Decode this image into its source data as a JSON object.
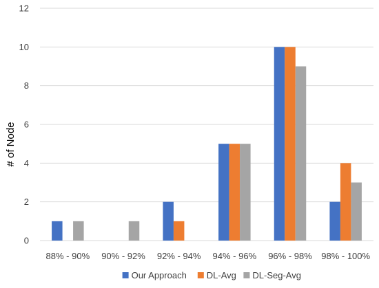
{
  "chart_data": {
    "type": "bar",
    "ylabel": "# of Node",
    "xlabel": "",
    "ylim": [
      0,
      12
    ],
    "yticks": [
      0,
      2,
      4,
      6,
      8,
      10,
      12
    ],
    "grid": true,
    "legend_position": "bottom",
    "categories": [
      "88% - 90%",
      "90% - 92%",
      "92% - 94%",
      "94% - 96%",
      "96% - 98%",
      "98% - 100%"
    ],
    "series": [
      {
        "name": "Our Approach",
        "color": "#4472c4",
        "values": [
          1,
          0,
          2,
          5,
          10,
          2
        ]
      },
      {
        "name": "DL-Avg",
        "color": "#ed7d31",
        "values": [
          0,
          0,
          1,
          5,
          10,
          4
        ]
      },
      {
        "name": "DL-Seg-Avg",
        "color": "#a5a5a5",
        "values": [
          1,
          1,
          0,
          5,
          9,
          3
        ]
      }
    ]
  }
}
